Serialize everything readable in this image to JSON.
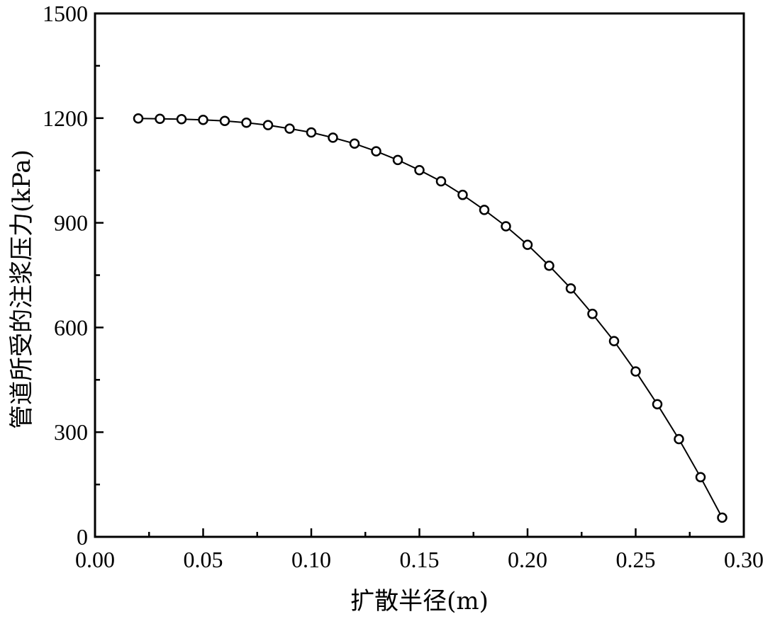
{
  "chart_data": {
    "type": "line",
    "title": "",
    "xlabel": "扩散半径(m)",
    "ylabel": "管道所受的注浆压力(kPa)",
    "xlim": [
      0.0,
      0.3
    ],
    "ylim": [
      0,
      1500
    ],
    "x_ticks": [
      0.0,
      0.05,
      0.1,
      0.15,
      0.2,
      0.25,
      0.3
    ],
    "x_tick_labels": [
      "0.00",
      "0.05",
      "0.10",
      "0.15",
      "0.20",
      "0.25",
      "0.30"
    ],
    "y_ticks": [
      0,
      300,
      600,
      900,
      1200,
      1500
    ],
    "y_tick_labels": [
      "0",
      "300",
      "600",
      "900",
      "1200",
      "1500"
    ],
    "grid": false,
    "legend": "none",
    "marker": "open-circle",
    "line_color": "#000000",
    "series": [
      {
        "x": [
          0.02,
          0.03,
          0.04,
          0.05,
          0.06,
          0.07,
          0.08,
          0.09,
          0.1,
          0.11,
          0.12,
          0.13,
          0.14,
          0.15,
          0.16,
          0.17,
          0.18,
          0.19,
          0.2,
          0.21,
          0.22,
          0.23,
          0.24,
          0.25,
          0.26,
          0.27,
          0.28,
          0.29
        ],
        "y": [
          1199,
          1198,
          1197,
          1195,
          1192,
          1187,
          1180,
          1170,
          1159,
          1144,
          1127,
          1105,
          1080,
          1051,
          1019,
          980,
          937,
          890,
          837,
          777,
          712,
          639,
          561,
          474,
          380,
          280,
          171,
          55
        ]
      }
    ]
  }
}
